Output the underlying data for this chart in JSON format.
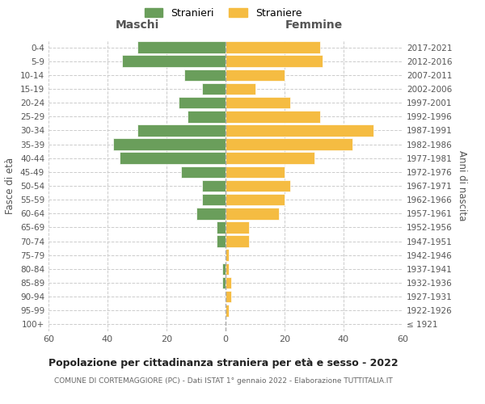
{
  "age_groups": [
    "100+",
    "95-99",
    "90-94",
    "85-89",
    "80-84",
    "75-79",
    "70-74",
    "65-69",
    "60-64",
    "55-59",
    "50-54",
    "45-49",
    "40-44",
    "35-39",
    "30-34",
    "25-29",
    "20-24",
    "15-19",
    "10-14",
    "5-9",
    "0-4"
  ],
  "birth_years": [
    "≤ 1921",
    "1922-1926",
    "1927-1931",
    "1932-1936",
    "1937-1941",
    "1942-1946",
    "1947-1951",
    "1952-1956",
    "1957-1961",
    "1962-1966",
    "1967-1971",
    "1972-1976",
    "1977-1981",
    "1982-1986",
    "1987-1991",
    "1992-1996",
    "1997-2001",
    "2002-2006",
    "2007-2011",
    "2012-2016",
    "2017-2021"
  ],
  "maschi": [
    0,
    0,
    0,
    1,
    1,
    0,
    3,
    3,
    10,
    8,
    8,
    15,
    36,
    38,
    30,
    13,
    16,
    8,
    14,
    35,
    30
  ],
  "femmine": [
    0,
    1,
    2,
    2,
    1,
    1,
    8,
    8,
    18,
    20,
    22,
    20,
    30,
    43,
    50,
    32,
    22,
    10,
    20,
    33,
    32
  ],
  "maschi_color": "#6a9e5b",
  "femmine_color": "#f5bc42",
  "title": "Popolazione per cittadinanza straniera per età e sesso - 2022",
  "subtitle": "COMUNE DI CORTEMAGGIORE (PC) - Dati ISTAT 1° gennaio 2022 - Elaborazione TUTTITALIA.IT",
  "xlabel_left": "Maschi",
  "xlabel_right": "Femmine",
  "ylabel_left": "Fasce di età",
  "ylabel_right": "Anni di nascita",
  "legend_maschi": "Stranieri",
  "legend_femmine": "Straniere",
  "xlim": 60,
  "background_color": "#ffffff",
  "grid_color": "#cccccc"
}
